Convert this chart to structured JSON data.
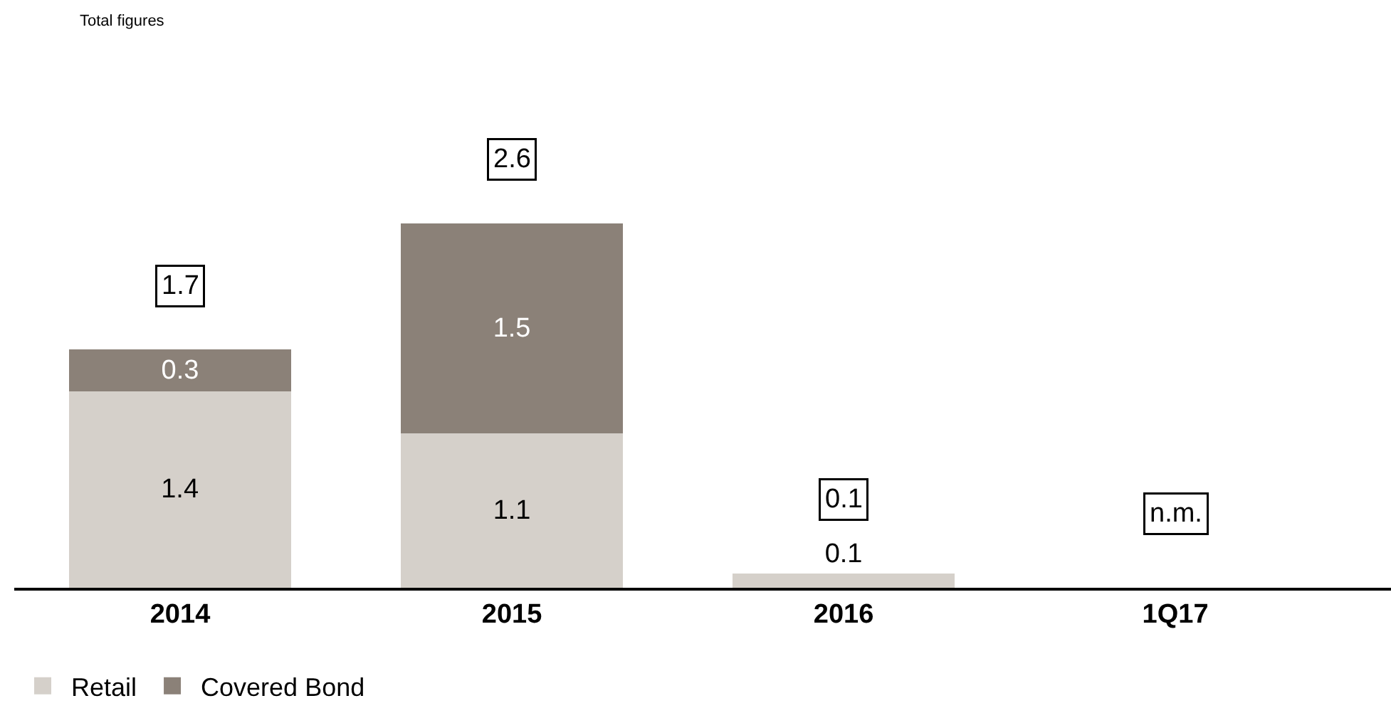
{
  "chart_data": {
    "type": "bar",
    "stacked": true,
    "categories": [
      "2014",
      "2015",
      "2016",
      "1Q17"
    ],
    "series": [
      {
        "name": "Retail",
        "color": "#d5d0ca",
        "values": [
          1.4,
          1.1,
          0.1,
          null
        ]
      },
      {
        "name": "Covered Bond",
        "color": "#8b8178",
        "values": [
          0.3,
          1.5,
          null,
          null
        ]
      }
    ],
    "data_labels": true,
    "totals": [
      "1.7",
      "2.6",
      "0.1",
      "n.m."
    ],
    "legend": "bottom left",
    "tick_labels": "x",
    "annotations": [
      "Total figures"
    ]
  }
}
